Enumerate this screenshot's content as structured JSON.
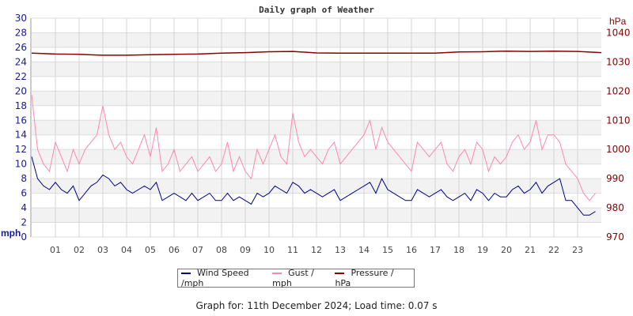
{
  "chart_data": {
    "type": "line",
    "title": "Daily graph of Weather",
    "y_left": {
      "unit_label": "mph",
      "range": [
        0,
        30
      ],
      "ticks": [
        0,
        2,
        4,
        6,
        8,
        10,
        12,
        14,
        16,
        18,
        20,
        22,
        24,
        26,
        28,
        30
      ]
    },
    "y_right": {
      "unit_label": "hPa",
      "range": [
        970,
        1045
      ],
      "ticks": [
        970,
        980,
        990,
        1000,
        1010,
        1020,
        1030,
        1040
      ]
    },
    "x": {
      "range": [
        0,
        24
      ],
      "tick_labels": [
        "01",
        "02",
        "03",
        "04",
        "05",
        "06",
        "07",
        "08",
        "09",
        "10",
        "11",
        "12",
        "13",
        "14",
        "15",
        "16",
        "17",
        "18",
        "19",
        "20",
        "21",
        "22",
        "23"
      ]
    },
    "grid": true,
    "legend_placement": "bottom",
    "series": [
      {
        "name": "Wind Speed /mph",
        "color": "#00008b",
        "axis": "left",
        "step_hours": 0.25,
        "values": [
          11,
          8,
          7,
          6.5,
          7.5,
          6.5,
          6,
          7,
          5,
          6,
          7,
          7.5,
          8.5,
          8,
          7,
          7.5,
          6.5,
          6,
          6.5,
          7,
          6.5,
          7.5,
          5,
          5.5,
          6,
          5.5,
          5,
          6,
          5,
          5.5,
          6,
          5,
          5,
          6,
          5,
          5.5,
          5,
          4.5,
          6,
          5.5,
          6,
          7,
          6.5,
          6,
          7.5,
          7,
          6,
          6.5,
          6,
          5.5,
          6,
          6.5,
          5,
          5.5,
          6,
          6.5,
          7,
          7.5,
          6,
          8,
          6.5,
          6,
          5.5,
          5,
          5,
          6.5,
          6,
          5.5,
          6,
          6.5,
          5.5,
          5,
          5.5,
          6,
          5,
          6.5,
          6,
          5,
          6,
          5.5,
          5.5,
          6.5,
          7,
          6,
          6.5,
          7.5,
          6,
          7,
          7.5,
          8,
          5,
          5,
          4,
          3,
          3,
          3.5
        ]
      },
      {
        "name": "Gust / mph",
        "color": "#ff88aa",
        "axis": "left",
        "step_hours": 0.25,
        "values": [
          19.5,
          12,
          10,
          9,
          13,
          11,
          9,
          12,
          10,
          12,
          13,
          14,
          18,
          14,
          12,
          13,
          11,
          10,
          12,
          14,
          11,
          15,
          9,
          10,
          12,
          9,
          10,
          11,
          9,
          10,
          11,
          9,
          10,
          13,
          9,
          11,
          9,
          8,
          12,
          10,
          12,
          14,
          11,
          10,
          17,
          13,
          11,
          12,
          11,
          10,
          12,
          13,
          10,
          11,
          12,
          13,
          14,
          16,
          12,
          15,
          13,
          12,
          11,
          10,
          9,
          13,
          12,
          11,
          12,
          13,
          10,
          9,
          11,
          12,
          10,
          13,
          12,
          9,
          11,
          10,
          11,
          13,
          14,
          12,
          13,
          16,
          12,
          14,
          14,
          13,
          10,
          9,
          8,
          6,
          5,
          6
        ]
      },
      {
        "name": "Pressure / hPa",
        "color": "#8b0000",
        "axis": "right",
        "step_hours": 1,
        "values": [
          1033.0,
          1032.7,
          1032.6,
          1032.3,
          1032.3,
          1032.5,
          1032.6,
          1032.7,
          1033.0,
          1033.2,
          1033.5,
          1033.6,
          1033.1,
          1033.0,
          1033.0,
          1033.0,
          1033.0,
          1033.0,
          1033.4,
          1033.5,
          1033.7,
          1033.6,
          1033.7,
          1033.6,
          1033.2
        ]
      }
    ]
  },
  "footer": "Graph for: 11th December 2024; Load time: 0.07 s"
}
